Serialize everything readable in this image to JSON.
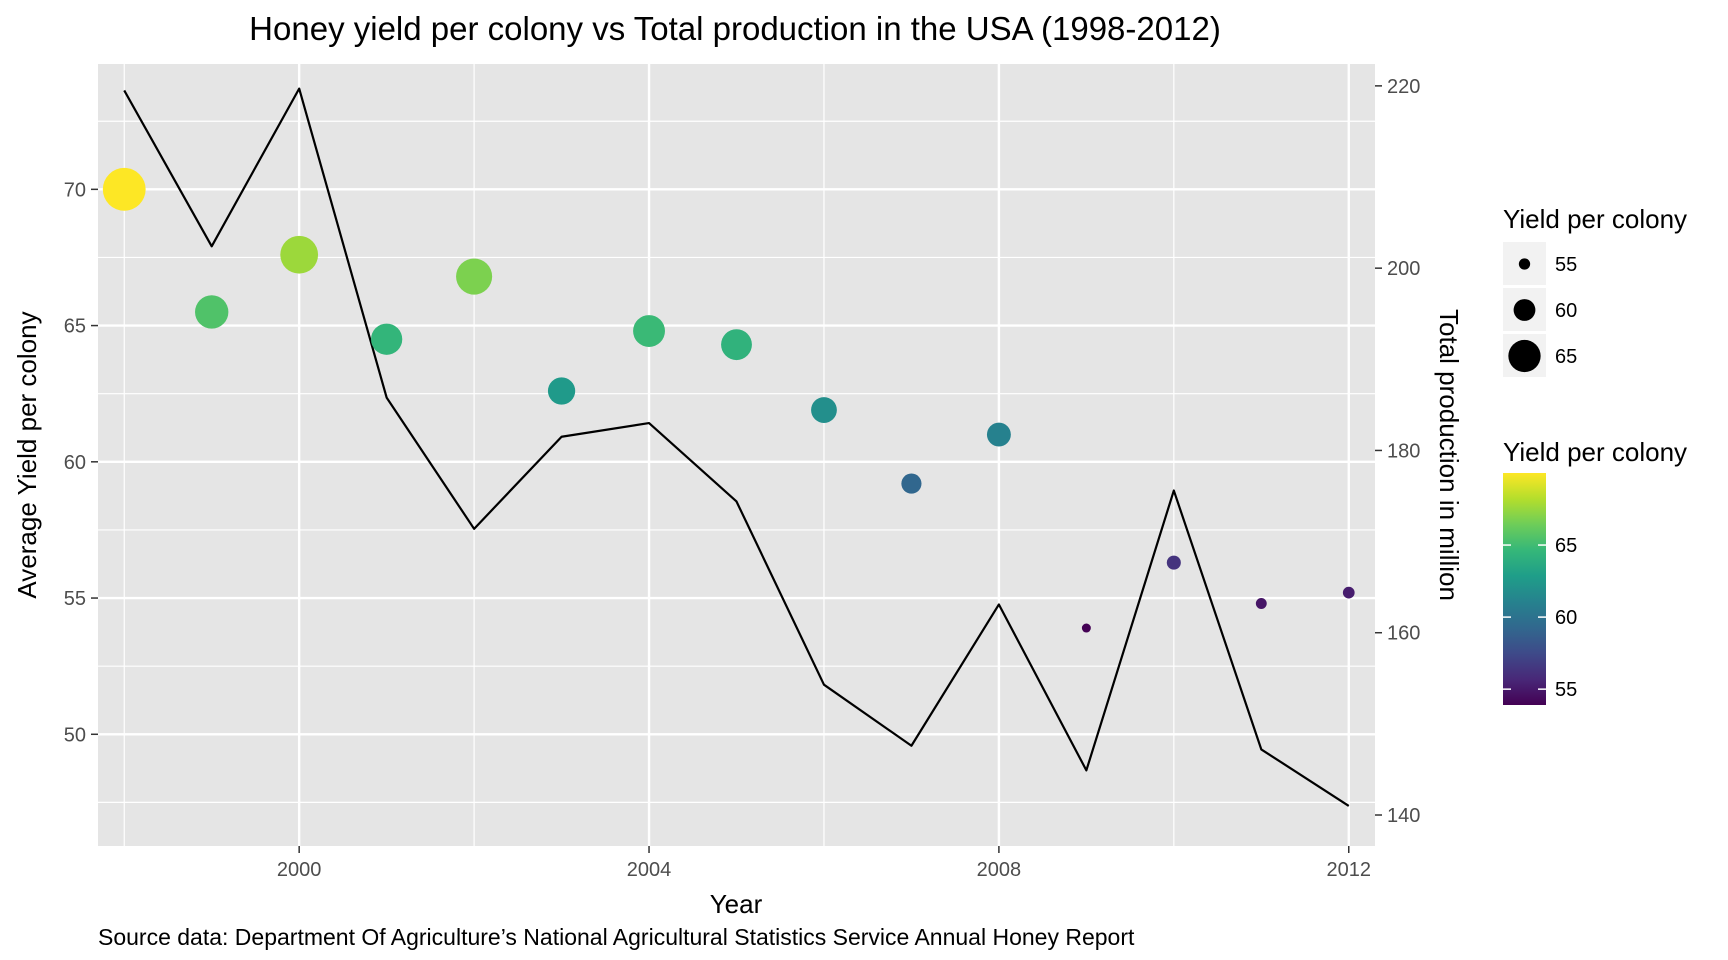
{
  "chart_data": {
    "type": "scatter",
    "title": "Honey yield per colony vs Total production in the USA (1998-2012)",
    "xlabel": "Year",
    "ylabel": "Average Yield per colony",
    "ylabel_right": "Total production in million",
    "caption": "Source data: Department Of Agriculture’s National Agricultural Statistics Service Annual Honey Report",
    "xlim": [
      1997.7,
      2012.3
    ],
    "ylim": [
      45.9,
      74.6
    ],
    "ylim_right": [
      136.6,
      222.4
    ],
    "x_ticks": [
      2000,
      2004,
      2008,
      2012
    ],
    "x_tick_labels": [
      "2000",
      "2004",
      "2008",
      "2012"
    ],
    "y_ticks": [
      50,
      55,
      60,
      65,
      70
    ],
    "y_tick_labels": [
      "50",
      "55",
      "60",
      "65",
      "70"
    ],
    "y_right_ticks": [
      140,
      160,
      180,
      200,
      220
    ],
    "y_right_tick_labels": [
      "140",
      "160",
      "180",
      "200",
      "220"
    ],
    "grid": true,
    "series": [
      {
        "name": "Yield per colony",
        "type": "scatter",
        "x": [
          1998,
          1999,
          2000,
          2001,
          2002,
          2003,
          2004,
          2005,
          2006,
          2007,
          2008,
          2009,
          2010,
          2011,
          2012
        ],
        "y": [
          70.0,
          65.5,
          67.6,
          64.5,
          66.8,
          62.6,
          64.8,
          64.3,
          61.9,
          59.2,
          61.0,
          53.9,
          56.3,
          54.8,
          55.2
        ]
      },
      {
        "name": "Total production in million",
        "type": "line",
        "axis": "right",
        "x": [
          1998,
          1999,
          2000,
          2001,
          2002,
          2003,
          2004,
          2005,
          2006,
          2007,
          2008,
          2009,
          2010,
          2011,
          2012
        ],
        "y": [
          219.5,
          202.4,
          219.7,
          185.8,
          171.4,
          181.5,
          183.0,
          174.4,
          154.3,
          147.6,
          163.1,
          144.9,
          175.6,
          147.2,
          141.0
        ]
      }
    ],
    "size_legend": {
      "title": "Yield per colony",
      "labels": [
        "55",
        "60",
        "65"
      ],
      "values": [
        55,
        60,
        65
      ]
    },
    "color_legend": {
      "title": "Yield per colony",
      "labels": [
        "55",
        "60",
        "65"
      ],
      "values": [
        55,
        60,
        65
      ],
      "range": [
        53.9,
        70.0
      ]
    },
    "legend_position": "right",
    "colors": {
      "panel_bg": "#e5e5e5",
      "grid": "#ffffff",
      "line": "#000000",
      "colormap": [
        "#440154",
        "#482878",
        "#3e4a89",
        "#31688e",
        "#26828e",
        "#1f9e89",
        "#35b779",
        "#6dcd59",
        "#b4de2c",
        "#fde725"
      ]
    }
  }
}
